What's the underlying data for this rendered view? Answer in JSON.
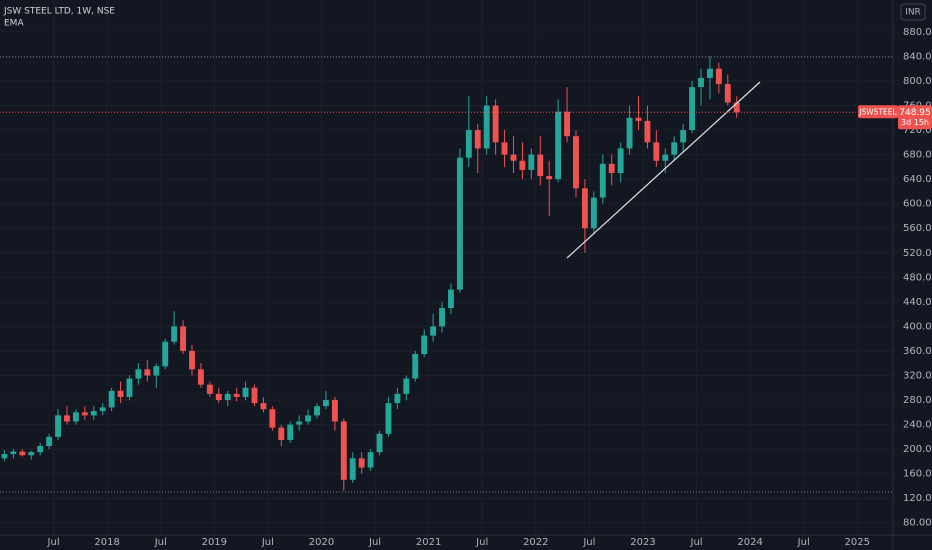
{
  "header": {
    "title": "JSW STEEL LTD, 1W, NSE",
    "indicator": "EMA",
    "currency": "INR"
  },
  "chart_data": {
    "type": "candlestick",
    "grid": true,
    "up_color": "#26a69a",
    "down_color": "#ef5350",
    "x": [
      "2017-01",
      "2017-02",
      "2017-03",
      "2017-04",
      "2017-05",
      "2017-06",
      "2017-07",
      "2017-08",
      "2017-09",
      "2017-10",
      "2017-11",
      "2017-12",
      "2018-01",
      "2018-02",
      "2018-03",
      "2018-04",
      "2018-05",
      "2018-06",
      "2018-07",
      "2018-08",
      "2018-09",
      "2018-10",
      "2018-11",
      "2018-12",
      "2019-01",
      "2019-02",
      "2019-03",
      "2019-04",
      "2019-05",
      "2019-06",
      "2019-07",
      "2019-08",
      "2019-09",
      "2019-10",
      "2019-11",
      "2019-12",
      "2020-01",
      "2020-02",
      "2020-03",
      "2020-04",
      "2020-05",
      "2020-06",
      "2020-07",
      "2020-08",
      "2020-09",
      "2020-10",
      "2020-11",
      "2020-12",
      "2021-01",
      "2021-02",
      "2021-03",
      "2021-04",
      "2021-05",
      "2021-06",
      "2021-07",
      "2021-08",
      "2021-09",
      "2021-10",
      "2021-11",
      "2021-12",
      "2022-01",
      "2022-02",
      "2022-03",
      "2022-04",
      "2022-05",
      "2022-06",
      "2022-07",
      "2022-08",
      "2022-09",
      "2022-10",
      "2022-11",
      "2022-12",
      "2023-01",
      "2023-02",
      "2023-03",
      "2023-04",
      "2023-05",
      "2023-06",
      "2023-07",
      "2023-08",
      "2023-09",
      "2023-10",
      "2023-11"
    ],
    "open": [
      185,
      192,
      196,
      190,
      195,
      205,
      220,
      255,
      245,
      260,
      255,
      262,
      268,
      295,
      285,
      315,
      330,
      320,
      335,
      375,
      400,
      360,
      330,
      305,
      290,
      280,
      290,
      285,
      300,
      275,
      265,
      235,
      215,
      240,
      245,
      255,
      270,
      280,
      245,
      150,
      185,
      170,
      195,
      225,
      275,
      290,
      315,
      355,
      385,
      400,
      430,
      460,
      675,
      720,
      690,
      760,
      700,
      680,
      670,
      655,
      680,
      645,
      640,
      750,
      710,
      625,
      560,
      610,
      665,
      650,
      690,
      740,
      735,
      700,
      670,
      680,
      700,
      720,
      790,
      805,
      820,
      795,
      765
    ],
    "high": [
      198,
      200,
      200,
      197,
      210,
      225,
      265,
      270,
      265,
      270,
      270,
      275,
      300,
      310,
      320,
      340,
      345,
      340,
      380,
      425,
      410,
      370,
      340,
      310,
      300,
      295,
      300,
      310,
      305,
      285,
      270,
      240,
      245,
      255,
      265,
      275,
      295,
      285,
      250,
      195,
      195,
      200,
      230,
      285,
      300,
      320,
      360,
      395,
      420,
      440,
      470,
      690,
      775,
      730,
      775,
      770,
      720,
      710,
      700,
      690,
      710,
      670,
      770,
      790,
      720,
      640,
      620,
      680,
      680,
      700,
      760,
      775,
      760,
      720,
      690,
      710,
      730,
      800,
      820,
      840,
      830,
      810,
      775
    ],
    "low": [
      180,
      185,
      188,
      183,
      190,
      200,
      215,
      240,
      240,
      248,
      248,
      255,
      262,
      275,
      280,
      305,
      310,
      300,
      330,
      370,
      355,
      320,
      300,
      285,
      275,
      270,
      278,
      280,
      270,
      260,
      230,
      205,
      210,
      230,
      240,
      250,
      265,
      230,
      132,
      145,
      160,
      165,
      190,
      220,
      265,
      280,
      310,
      350,
      375,
      390,
      420,
      455,
      660,
      650,
      680,
      680,
      660,
      650,
      640,
      640,
      630,
      580,
      635,
      700,
      610,
      520,
      550,
      600,
      630,
      635,
      680,
      720,
      690,
      660,
      650,
      670,
      685,
      715,
      760,
      770,
      780,
      760,
      740
    ],
    "close": [
      192,
      196,
      190,
      195,
      205,
      220,
      255,
      245,
      260,
      255,
      262,
      268,
      295,
      285,
      315,
      330,
      320,
      335,
      375,
      400,
      360,
      330,
      305,
      290,
      280,
      290,
      285,
      300,
      275,
      265,
      235,
      215,
      240,
      245,
      255,
      270,
      280,
      245,
      150,
      185,
      170,
      195,
      225,
      275,
      290,
      315,
      355,
      385,
      400,
      430,
      460,
      675,
      720,
      690,
      760,
      700,
      680,
      670,
      655,
      680,
      645,
      640,
      750,
      710,
      625,
      560,
      610,
      665,
      650,
      690,
      740,
      735,
      700,
      670,
      680,
      700,
      720,
      790,
      805,
      820,
      795,
      765,
      748.95
    ],
    "xlim": [
      "2017-01",
      "2025-05"
    ],
    "xticks": [
      {
        "value": "2017-07",
        "label": "Jul"
      },
      {
        "value": "2018-01",
        "label": "2018"
      },
      {
        "value": "2018-07",
        "label": "Jul"
      },
      {
        "value": "2019-01",
        "label": "2019"
      },
      {
        "value": "2019-07",
        "label": "Jul"
      },
      {
        "value": "2020-01",
        "label": "2020"
      },
      {
        "value": "2020-07",
        "label": "Jul"
      },
      {
        "value": "2021-01",
        "label": "2021"
      },
      {
        "value": "2021-07",
        "label": "Jul"
      },
      {
        "value": "2022-01",
        "label": "2022"
      },
      {
        "value": "2022-07",
        "label": "Jul"
      },
      {
        "value": "2023-01",
        "label": "2023"
      },
      {
        "value": "2023-07",
        "label": "Jul"
      },
      {
        "value": "2024-01",
        "label": "2024"
      },
      {
        "value": "2024-07",
        "label": "Jul"
      },
      {
        "value": "2025-01",
        "label": "2025"
      }
    ],
    "ylim": [
      60,
      932
    ],
    "yticks": [
      {
        "value": 80,
        "label": "80.00"
      },
      {
        "value": 120,
        "label": "120.00"
      },
      {
        "value": 160,
        "label": "160.00"
      },
      {
        "value": 200,
        "label": "200.00"
      },
      {
        "value": 240,
        "label": "240.00"
      },
      {
        "value": 280,
        "label": "280.00"
      },
      {
        "value": 320,
        "label": "320.00"
      },
      {
        "value": 360,
        "label": "360.00"
      },
      {
        "value": 400,
        "label": "400.00"
      },
      {
        "value": 440,
        "label": "440.00"
      },
      {
        "value": 480,
        "label": "480.00"
      },
      {
        "value": 520,
        "label": "520.00"
      },
      {
        "value": 560,
        "label": "560.00"
      },
      {
        "value": 600,
        "label": "600.00"
      },
      {
        "value": 640,
        "label": "640.00"
      },
      {
        "value": 680,
        "label": "680.00"
      },
      {
        "value": 720,
        "label": "720.00"
      },
      {
        "value": 760,
        "label": "760.00"
      },
      {
        "value": 800,
        "label": "800.00"
      },
      {
        "value": 840,
        "label": "840.00"
      },
      {
        "value": 880,
        "label": "880.00"
      }
    ],
    "price_label": {
      "symbol": "JSWSTEEL",
      "countdown": "3d 15h"
    }
  }
}
